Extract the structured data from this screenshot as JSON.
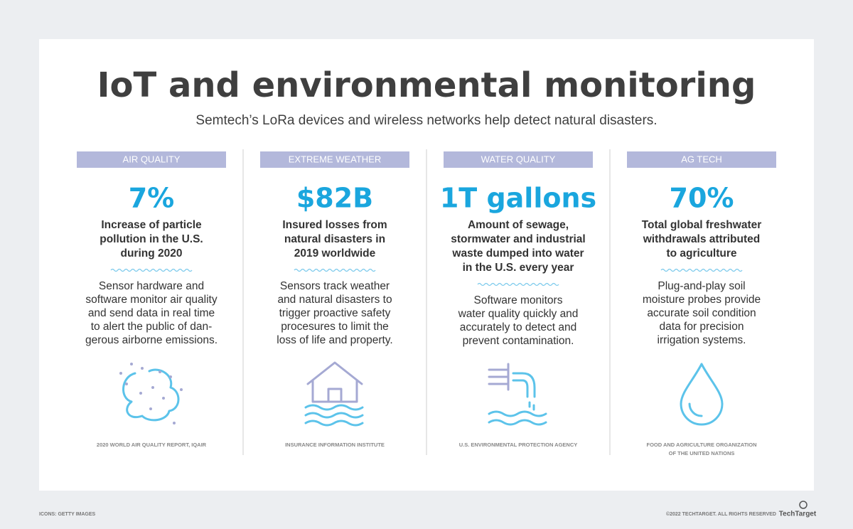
{
  "header": {
    "title": "IoT and environmental monitoring",
    "subtitle": "Semtech’s LoRa devices and wireless networks help detect natural disasters."
  },
  "columns": [
    {
      "category": "AIR QUALITY",
      "stat": "7%",
      "headline": [
        "Increase of particle",
        "pollution in the U.S.",
        "during 2020"
      ],
      "body": [
        "Sensor hardware and",
        "software monitor air quality",
        "and send data in real time",
        "to alert the public of dan-",
        "gerous airborne emissions."
      ],
      "source": [
        "2020 WORLD AIR QUALITY REPORT, IQAIR"
      ]
    },
    {
      "category": "EXTREME WEATHER",
      "stat": "$82B",
      "headline": [
        "Insured losses from",
        "natural disasters in",
        "2019 worldwide"
      ],
      "body": [
        "Sensors track weather",
        "and natural disasters to",
        "trigger proactive safety",
        "procesures to limit the",
        "loss of life and property."
      ],
      "source": [
        "INSURANCE INFORMATION INSTITUTE"
      ]
    },
    {
      "category": "WATER QUALITY",
      "stat": "1T gallons",
      "headline": [
        "Amount of sewage,",
        "stormwater and industrial",
        "waste dumped into water",
        "in the U.S. every year"
      ],
      "body": [
        "Software monitors",
        "water quality quickly and",
        "accurately to detect and",
        "prevent contamination."
      ],
      "source": [
        "U.S. ENVIRONMENTAL PROTECTION AGENCY"
      ]
    },
    {
      "category": "AG TECH",
      "stat": "70%",
      "headline": [
        "Total global freshwater",
        "withdrawals attributed",
        "to agriculture"
      ],
      "body": [
        "Plug-and-play soil",
        "moisture probes provide",
        "accurate soil condition",
        "data for precision",
        "irrigation systems."
      ],
      "source": [
        "FOOD AND AGRICULTURE ORGANIZATION",
        "OF THE UNITED NATIONS"
      ]
    }
  ],
  "footer": {
    "credits": "ICONS: GETTY IMAGES",
    "copyright": "©2022 TECHTARGET. ALL RIGHTS RESERVED",
    "logo": "TechTarget"
  }
}
